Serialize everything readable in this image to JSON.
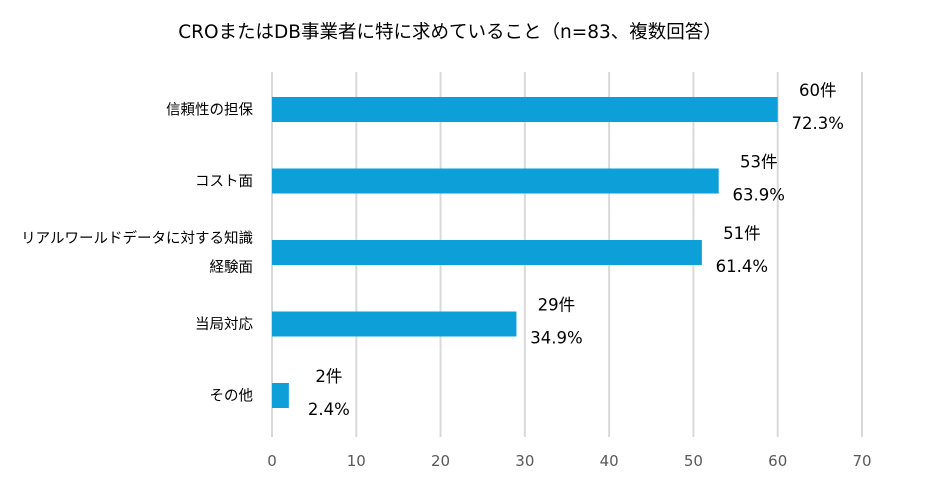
{
  "chart_data": {
    "type": "bar",
    "orientation": "horizontal",
    "title": "CROまたはDB事業者に特に求めていること（n=83、複数回答）",
    "categories": [
      [
        "信頼性の担保"
      ],
      [
        "コスト面"
      ],
      [
        "リアルワールドデータに対する知識",
        "経験面"
      ],
      [
        "当局対応"
      ],
      [
        "その他"
      ]
    ],
    "values": [
      60,
      53,
      51,
      29,
      2
    ],
    "value_labels": [
      "60件",
      "53件",
      "51件",
      "29件",
      "2件"
    ],
    "percent_labels": [
      "72.3%",
      "63.9%",
      "61.4%",
      "34.9%",
      "2.4%"
    ],
    "xlim": [
      0,
      70
    ],
    "xticks": [
      0,
      10,
      20,
      30,
      40,
      50,
      60,
      70
    ],
    "grid": true,
    "bar_color": "#0d9fd8",
    "legend": "none"
  }
}
